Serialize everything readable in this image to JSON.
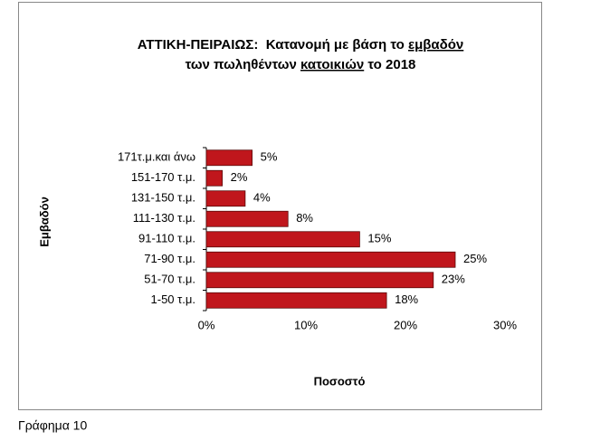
{
  "chart_data": {
    "type": "bar",
    "orientation": "horizontal",
    "title": [
      [
        {
          "text": "ΑΤΤΙΚΗ-ΠΕΙΡΑΙΩΣ:  Κατανομή με βάση το "
        },
        {
          "text": "εμβαδόν",
          "underline": true
        }
      ],
      [
        {
          "text": "των πωληθέντων "
        },
        {
          "text": "κατοικιών",
          "underline": true
        },
        {
          "text": " το 2018"
        }
      ]
    ],
    "x_label": "Ποσοστό",
    "y_label": "Εμβαδόν",
    "categories": [
      "171τ.μ.και άνω",
      "151-170 τ.μ.",
      "131-150 τ.μ.",
      "111-130 τ.μ.",
      "91-110 τ.μ.",
      "71-90 τ.μ.",
      "51-70 τ.μ.",
      "1-50 τ.μ."
    ],
    "values": [
      4.6,
      1.6,
      3.9,
      8.2,
      15.4,
      25,
      22.8,
      18.1
    ],
    "value_labels": [
      "5%",
      "2%",
      "4%",
      "8%",
      "15%",
      "25%",
      "23%",
      "18%"
    ],
    "color": "#c0161c",
    "xlim": [
      0,
      30
    ],
    "xticks": [
      {
        "value": 0,
        "label": "0%"
      },
      {
        "value": 10,
        "label": "10%"
      },
      {
        "value": 20,
        "label": "20%"
      },
      {
        "value": 30,
        "label": "30%"
      }
    ],
    "grid": false,
    "caption": "Γράφημα 10"
  }
}
